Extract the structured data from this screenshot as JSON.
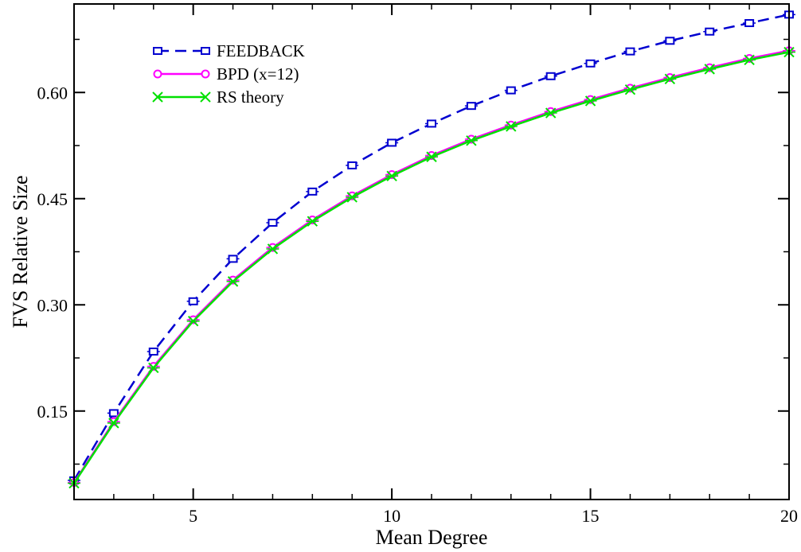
{
  "chart_data": {
    "type": "line",
    "xlabel": "Mean Degree",
    "ylabel": "FVS Relative Size",
    "xlim": [
      2,
      20
    ],
    "ylim": [
      0.025,
      0.725
    ],
    "xticks": [
      5,
      10,
      15,
      20
    ],
    "xtick_labels": [
      "5",
      "10",
      "15",
      "20"
    ],
    "yticks": [
      0.15,
      0.3,
      0.45,
      0.6
    ],
    "ytick_labels": [
      "0.15",
      "0.30",
      "0.45",
      "0.60"
    ],
    "grid": false,
    "legend_position": "top-left",
    "x": [
      2,
      3,
      4,
      5,
      6,
      7,
      8,
      9,
      10,
      11,
      12,
      13,
      14,
      15,
      16,
      17,
      18,
      19,
      20
    ],
    "series": [
      {
        "name": "FEEDBACK",
        "color": "#0000d0",
        "line_style": "dashed",
        "marker": "square",
        "values": [
          0.052,
          0.147,
          0.234,
          0.305,
          0.365,
          0.416,
          0.46,
          0.497,
          0.529,
          0.556,
          0.581,
          0.603,
          0.623,
          0.641,
          0.658,
          0.673,
          0.686,
          0.698,
          0.71
        ]
      },
      {
        "name": "BPD (x=12)",
        "color": "#ff00ff",
        "line_style": "solid",
        "marker": "circle",
        "values": [
          0.049,
          0.135,
          0.213,
          0.279,
          0.335,
          0.381,
          0.42,
          0.454,
          0.484,
          0.511,
          0.534,
          0.554,
          0.573,
          0.59,
          0.606,
          0.621,
          0.635,
          0.648,
          0.659
        ]
      },
      {
        "name": "RS theory",
        "color": "#00e000",
        "line_style": "solid",
        "marker": "x",
        "values": [
          0.048,
          0.133,
          0.211,
          0.277,
          0.333,
          0.379,
          0.418,
          0.452,
          0.482,
          0.509,
          0.532,
          0.552,
          0.571,
          0.588,
          0.604,
          0.619,
          0.633,
          0.646,
          0.657
        ]
      }
    ]
  }
}
